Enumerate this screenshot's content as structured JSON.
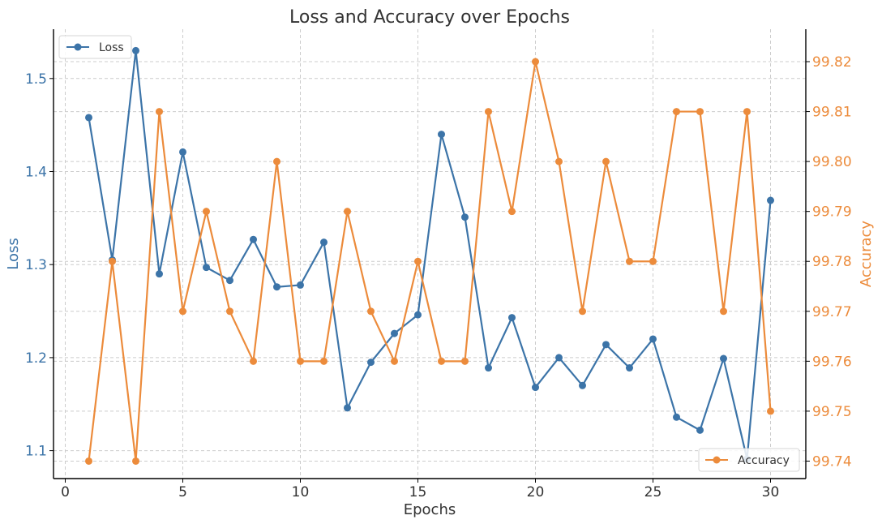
{
  "chart_data": {
    "type": "line",
    "title": "Loss and Accuracy over Epochs",
    "xlabel": "Epochs",
    "ylabel_left": "Loss",
    "ylabel_right": "Accuracy",
    "xlim": [
      -0.5,
      31.5
    ],
    "ylim_left": [
      1.07,
      1.553
    ],
    "ylim_right": [
      99.7365,
      99.8265
    ],
    "x_ticks": [
      "0",
      "5",
      "10",
      "15",
      "20",
      "25",
      "30"
    ],
    "y_left_ticks": [
      "1.1",
      "1.2",
      "1.3",
      "1.4",
      "1.5"
    ],
    "y_right_ticks": [
      "99.74",
      "99.75",
      "99.76",
      "99.77",
      "99.78",
      "99.79",
      "99.80",
      "99.81",
      "99.82"
    ],
    "grid": true,
    "legend_left_placement": "top-left",
    "legend_right_placement": "bottom-right",
    "x": [
      1,
      2,
      3,
      4,
      5,
      6,
      7,
      8,
      9,
      10,
      11,
      12,
      13,
      14,
      15,
      16,
      17,
      18,
      19,
      20,
      21,
      22,
      23,
      24,
      25,
      26,
      27,
      28,
      29,
      30
    ],
    "series": [
      {
        "name": "Loss",
        "axis": "left",
        "color": "#3c74a8",
        "values": [
          1.458,
          1.305,
          1.53,
          1.29,
          1.421,
          1.297,
          1.283,
          1.327,
          1.276,
          1.278,
          1.324,
          1.146,
          1.195,
          1.226,
          1.246,
          1.44,
          1.351,
          1.189,
          1.243,
          1.168,
          1.2,
          1.17,
          1.214,
          1.189,
          1.22,
          1.136,
          1.122,
          1.199,
          1.091,
          1.369
        ]
      },
      {
        "name": "Accuracy",
        "axis": "right",
        "color": "#ec8b3b",
        "values": [
          99.74,
          99.78,
          99.74,
          99.81,
          99.77,
          99.79,
          99.77,
          99.76,
          99.8,
          99.76,
          99.76,
          99.79,
          99.77,
          99.76,
          99.78,
          99.76,
          99.76,
          99.81,
          99.79,
          99.82,
          99.8,
          99.77,
          99.8,
          99.78,
          99.78,
          99.81,
          99.81,
          99.77,
          99.81,
          99.75
        ]
      }
    ]
  }
}
